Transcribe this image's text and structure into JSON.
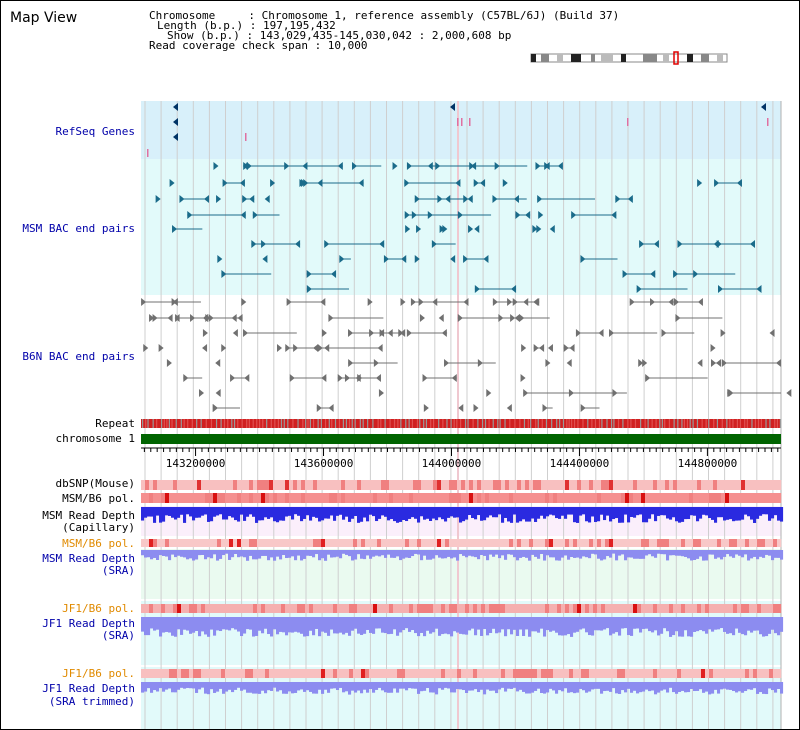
{
  "window": {
    "title": "Map View"
  },
  "info": {
    "chromosome_line": "Chromosome     : Chromosome 1, reference assembly (C57BL/6J) (Build 37)",
    "length_line": "Length (b.p.) : 197,195,432",
    "show_line": "Show (b.p.) : 143,029,435-145,030,042 : 2,000,608 bp",
    "coverage_line": "Read coverage check span : 10,000"
  },
  "tracks": {
    "refseq": {
      "label": "RefSeq Genes",
      "color": "#0000aa"
    },
    "msm_bac": {
      "label": "MSM BAC end pairs",
      "color": "#0000aa"
    },
    "b6n_bac": {
      "label": "B6N BAC end pairs",
      "color": "#0000aa"
    },
    "repeat": {
      "label": "Repeat"
    },
    "chromosome": {
      "label": "chromosome 1"
    },
    "dbsnp": {
      "label": "dbSNP(Mouse)"
    },
    "msm_b6_pol": {
      "label": "MSM/B6 pol."
    },
    "msm_depth_cap": {
      "label1": "MSM Read Depth",
      "label2": "(Capillary)"
    },
    "msm_b6_pol_2": {
      "label": "MSM/B6 pol."
    },
    "msm_depth_sra": {
      "label1": "MSM Read Depth",
      "label2": "(SRA)"
    },
    "jf1_b6_pol": {
      "label": "JF1/B6 pol."
    },
    "jf1_depth_sra": {
      "label1": "JF1 Read Depth",
      "label2": "(SRA)"
    },
    "jf1_b6_pol_2": {
      "label": "JF1/B6 pol."
    },
    "jf1_depth_trim": {
      "label1": "JF1 Read Depth",
      "label2": "(SRA trimmed)"
    }
  },
  "axis": {
    "range_bp": [
      143029435,
      145030042
    ],
    "ticks": [
      "143200000",
      "143600000",
      "144000000",
      "144400000",
      "144800000"
    ]
  },
  "colors": {
    "gene": "#003366",
    "msm_feature": "#1a6b8a",
    "b6n_feature": "#707070",
    "depth_blue": "#2a2ae0",
    "depth_light": "#8c8cf0",
    "pol_red": "#e03030",
    "chrom_green": "#006400",
    "label_orange": "#e08a00"
  }
}
